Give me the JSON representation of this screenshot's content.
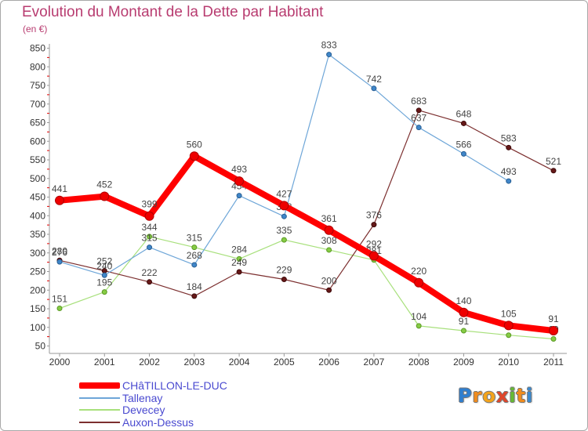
{
  "chart_data": {
    "type": "line",
    "title": "Evolution du Montant de la Dette par Habitant",
    "subtitle": "(en €)",
    "xlabel": "",
    "ylabel": "",
    "categories": [
      "2000",
      "2001",
      "2002",
      "2003",
      "2004",
      "2005",
      "2006",
      "2007",
      "2008",
      "2009",
      "2010",
      "2011"
    ],
    "ylim": [
      50,
      850
    ],
    "yticks": [
      50,
      100,
      150,
      200,
      250,
      300,
      350,
      400,
      450,
      500,
      550,
      600,
      650,
      700,
      750,
      800,
      850
    ],
    "grid": false,
    "legend": "bottom-left",
    "series": [
      {
        "name": "CHâTILLON-LE-DUC",
        "color": "#ff0000",
        "marker_color": "#ee0000",
        "marker_stroke": "#b00000",
        "values": [
          441,
          452,
          399,
          560,
          493,
          427,
          361,
          292,
          220,
          140,
          105,
          91
        ]
      },
      {
        "name": "Tallenay",
        "color": "#6ea6d8",
        "marker_color": "#3f86c9",
        "marker_stroke": "#2a5f93",
        "values": [
          276,
          240,
          315,
          268,
          454,
          398,
          833,
          742,
          637,
          566,
          493,
          null
        ]
      },
      {
        "name": "Devecey",
        "color": "#a8e07c",
        "marker_color": "#86cc44",
        "marker_stroke": "#5b9a25",
        "values": [
          151,
          195,
          344,
          315,
          284,
          335,
          308,
          281,
          104,
          91,
          79,
          69
        ]
      },
      {
        "name": "Auxon-Dessus",
        "color": "#7c2f2f",
        "marker_color": "#661818",
        "marker_stroke": "#3e0b0b",
        "values": [
          280,
          252,
          222,
          184,
          249,
          229,
          200,
          376,
          683,
          648,
          583,
          521
        ]
      }
    ]
  },
  "logo": {
    "text": "Proxiti",
    "colors": [
      "#2f7fd0",
      "#f08c1e",
      "#f4a41c",
      "#e0452a",
      "#66bb33",
      "#f08c1e",
      "#3a8ad0"
    ]
  }
}
